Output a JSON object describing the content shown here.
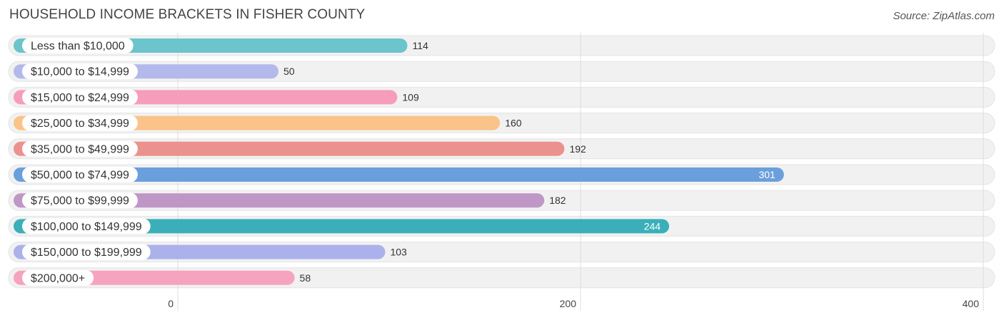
{
  "header": {
    "title": "HOUSEHOLD INCOME BRACKETS IN FISHER COUNTY",
    "source": "Source: ZipAtlas.com"
  },
  "chart_data": {
    "type": "bar",
    "orientation": "horizontal",
    "title": "HOUSEHOLD INCOME BRACKETS IN FISHER COUNTY",
    "categories": [
      "Less than $10,000",
      "$10,000 to $14,999",
      "$15,000 to $24,999",
      "$25,000 to $34,999",
      "$35,000 to $49,999",
      "$50,000 to $74,999",
      "$75,000 to $99,999",
      "$100,000 to $149,999",
      "$150,000 to $199,999",
      "$200,000+"
    ],
    "values": [
      114,
      50,
      109,
      160,
      192,
      301,
      182,
      244,
      103,
      58
    ],
    "colors": [
      "#6cc4cc",
      "#b3b9eb",
      "#f59dbb",
      "#f9c38a",
      "#eb928e",
      "#6b9fdc",
      "#bf97c6",
      "#3aafb9",
      "#abb1ea",
      "#f6a3c0"
    ],
    "xlim": [
      0,
      400
    ],
    "xticks": [
      0,
      200,
      400
    ],
    "grid": true
  }
}
